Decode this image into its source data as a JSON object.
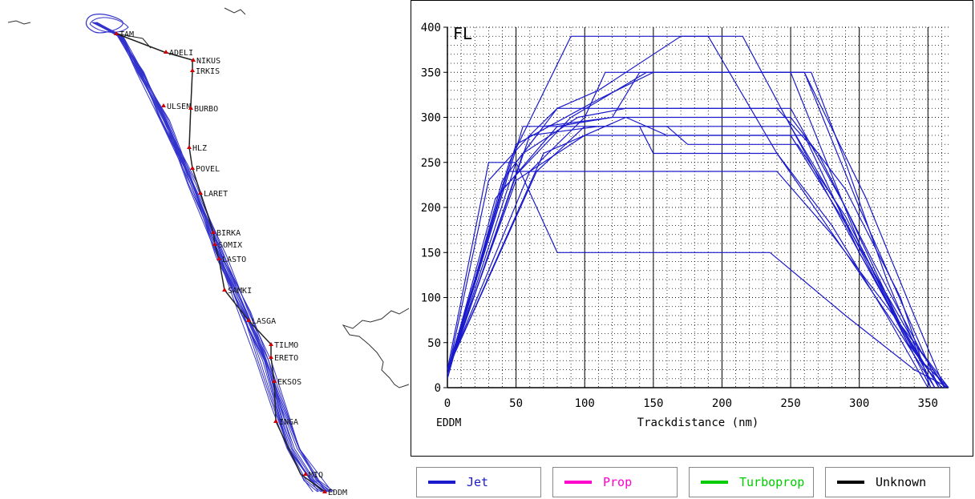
{
  "map": {
    "waypoints": [
      "ADELI",
      "NIKUS",
      "IRKIS",
      "ULSEN",
      "BURBO",
      "HLZ",
      "POVEL",
      "LARET",
      "BIRKA",
      "SOMIX",
      "LASTO",
      "SAMKI",
      "LASGA",
      "TILMO",
      "ERETO",
      "EKSOS",
      "INGA",
      "MIQ",
      "EDDM",
      "TAM"
    ],
    "track_color": "#3333cc",
    "route_color": "#222222",
    "waypoint_color": "#cc0000"
  },
  "chart_data": {
    "type": "line",
    "ylabel_corner": "FL",
    "xlabel": "Trackdistance (nm)",
    "origin_label": "EDDM",
    "xlim": [
      0,
      365
    ],
    "ylim": [
      0,
      400
    ],
    "x_ticks": [
      0,
      50,
      100,
      150,
      200,
      250,
      300,
      350
    ],
    "y_ticks": [
      0,
      50,
      100,
      150,
      200,
      250,
      300,
      350,
      400
    ],
    "grid": true,
    "line_color": "#1a1acc",
    "series": [
      {
        "values": [
          [
            0,
            15
          ],
          [
            30,
            230
          ],
          [
            60,
            280
          ],
          [
            80,
            310
          ],
          [
            110,
            330
          ],
          [
            170,
            390
          ],
          [
            215,
            390
          ],
          [
            250,
            290
          ],
          [
            300,
            150
          ],
          [
            340,
            40
          ],
          [
            360,
            0
          ]
        ]
      },
      {
        "values": [
          [
            0,
            15
          ],
          [
            45,
            250
          ],
          [
            90,
            390
          ],
          [
            190,
            390
          ],
          [
            240,
            260
          ],
          [
            290,
            150
          ],
          [
            330,
            60
          ],
          [
            355,
            0
          ]
        ]
      },
      {
        "values": [
          [
            0,
            20
          ],
          [
            60,
            240
          ],
          [
            100,
            300
          ],
          [
            115,
            350
          ],
          [
            265,
            350
          ],
          [
            290,
            250
          ],
          [
            320,
            120
          ],
          [
            345,
            30
          ],
          [
            365,
            0
          ]
        ]
      },
      {
        "values": [
          [
            0,
            15
          ],
          [
            50,
            250
          ],
          [
            70,
            290
          ],
          [
            120,
            300
          ],
          [
            140,
            350
          ],
          [
            250,
            350
          ],
          [
            300,
            160
          ],
          [
            335,
            50
          ],
          [
            360,
            0
          ]
        ]
      },
      {
        "values": [
          [
            0,
            10
          ],
          [
            40,
            230
          ],
          [
            80,
            310
          ],
          [
            240,
            310
          ],
          [
            270,
            260
          ],
          [
            310,
            140
          ],
          [
            345,
            40
          ],
          [
            362,
            0
          ]
        ]
      },
      {
        "values": [
          [
            0,
            15
          ],
          [
            55,
            260
          ],
          [
            95,
            300
          ],
          [
            130,
            310
          ],
          [
            250,
            310
          ],
          [
            290,
            200
          ],
          [
            330,
            70
          ],
          [
            355,
            0
          ]
        ]
      },
      {
        "values": [
          [
            0,
            20
          ],
          [
            65,
            240
          ],
          [
            100,
            290
          ],
          [
            140,
            290
          ],
          [
            150,
            260
          ],
          [
            240,
            260
          ],
          [
            280,
            180
          ],
          [
            320,
            80
          ],
          [
            350,
            0
          ]
        ]
      },
      {
        "values": [
          [
            0,
            20
          ],
          [
            50,
            230
          ],
          [
            100,
            280
          ],
          [
            170,
            280
          ],
          [
            250,
            280
          ],
          [
            295,
            170
          ],
          [
            340,
            50
          ],
          [
            363,
            0
          ]
        ]
      },
      {
        "values": [
          [
            0,
            15
          ],
          [
            45,
            240
          ],
          [
            240,
            240
          ],
          [
            280,
            170
          ],
          [
            320,
            90
          ],
          [
            350,
            30
          ],
          [
            365,
            0
          ]
        ]
      },
      {
        "values": [
          [
            0,
            20
          ],
          [
            30,
            250
          ],
          [
            50,
            250
          ],
          [
            80,
            150
          ],
          [
            235,
            150
          ],
          [
            290,
            80
          ],
          [
            340,
            20
          ],
          [
            365,
            0
          ]
        ]
      },
      {
        "values": [
          [
            0,
            15
          ],
          [
            60,
            280
          ],
          [
            110,
            290
          ],
          [
            160,
            290
          ],
          [
            175,
            270
          ],
          [
            255,
            270
          ],
          [
            290,
            190
          ],
          [
            330,
            70
          ],
          [
            358,
            0
          ]
        ]
      },
      {
        "values": [
          [
            0,
            15
          ],
          [
            40,
            220
          ],
          [
            90,
            300
          ],
          [
            145,
            350
          ],
          [
            175,
            350
          ],
          [
            260,
            350
          ],
          [
            300,
            200
          ],
          [
            335,
            80
          ],
          [
            358,
            0
          ]
        ]
      },
      {
        "values": [
          [
            0,
            20
          ],
          [
            50,
            270
          ],
          [
            110,
            320
          ],
          [
            150,
            350
          ],
          [
            260,
            350
          ],
          [
            305,
            210
          ],
          [
            340,
            80
          ],
          [
            362,
            0
          ]
        ]
      },
      {
        "values": [
          [
            0,
            15
          ],
          [
            35,
            210
          ],
          [
            80,
            290
          ],
          [
            120,
            300
          ],
          [
            250,
            300
          ],
          [
            290,
            220
          ],
          [
            330,
            100
          ],
          [
            352,
            0
          ]
        ]
      },
      {
        "values": [
          [
            0,
            20
          ],
          [
            70,
            260
          ],
          [
            130,
            300
          ],
          [
            160,
            280
          ],
          [
            260,
            280
          ],
          [
            300,
            150
          ],
          [
            345,
            30
          ],
          [
            365,
            0
          ]
        ]
      },
      {
        "values": [
          [
            0,
            15
          ],
          [
            55,
            290
          ],
          [
            250,
            290
          ],
          [
            285,
            200
          ],
          [
            325,
            80
          ],
          [
            352,
            0
          ]
        ]
      }
    ]
  },
  "legend": [
    {
      "label": "Jet",
      "color": "#1a1acc"
    },
    {
      "label": "Prop",
      "color": "#ff00cc"
    },
    {
      "label": "Turboprop",
      "color": "#00cc00"
    },
    {
      "label": "Unknown",
      "color": "#000000"
    }
  ]
}
